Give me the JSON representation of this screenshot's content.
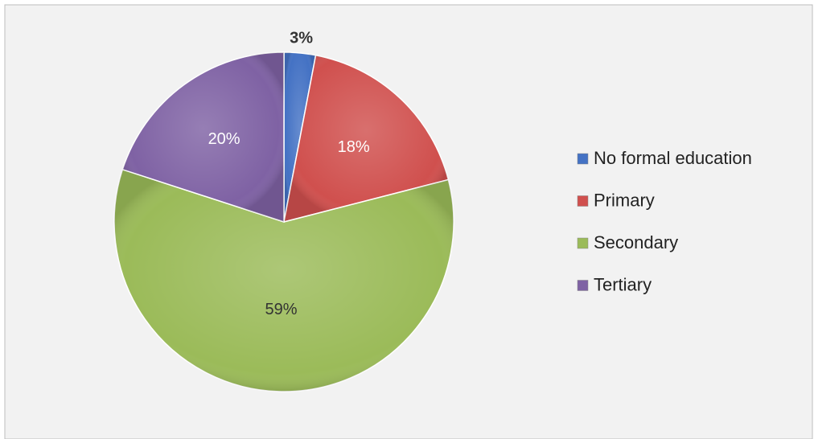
{
  "chart_data": {
    "type": "pie",
    "categories": [
      "No formal education",
      "Primary",
      "Secondary",
      "Tertiary"
    ],
    "values": [
      3,
      18,
      59,
      20
    ],
    "value_labels": [
      "3%",
      "18%",
      "59%",
      "20%"
    ],
    "colors": [
      "#4472c4",
      "#d0504e",
      "#9bbb59",
      "#7f62a4"
    ],
    "label_colors": [
      "#333333",
      "#ffffff",
      "#333333",
      "#ffffff"
    ],
    "legend": "right"
  }
}
